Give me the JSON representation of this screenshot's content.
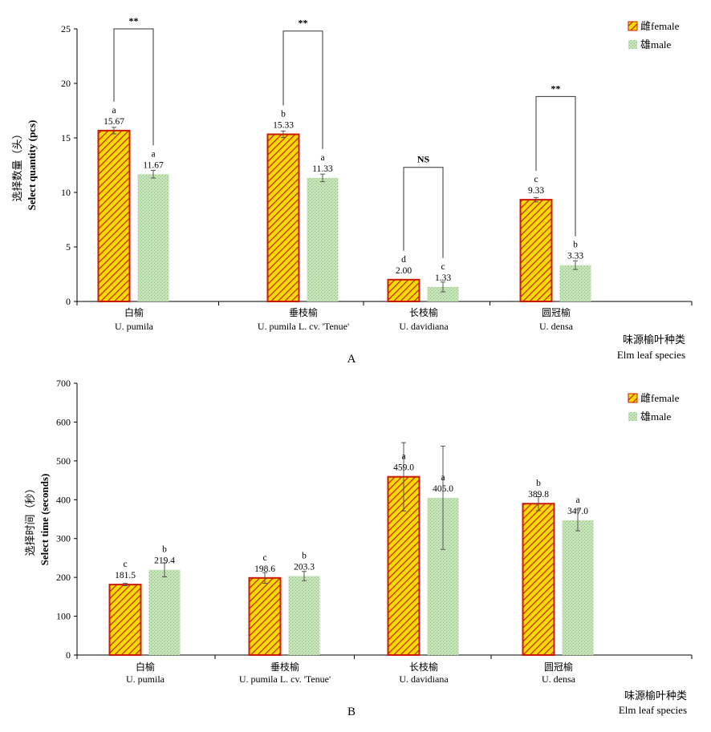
{
  "colors": {
    "female_fill": "#f4dc00",
    "female_hatch": "#cc1a00",
    "female_border": "#cc1a00",
    "male_fill": "#c6e2b8",
    "male_dot": "#8fbd80",
    "axis": "#000000",
    "error_bar": "#555555"
  },
  "chart_data": [
    {
      "type": "bar",
      "panel_label": "A",
      "ylabel_cn": "选择数量（头）",
      "ylabel_en": "Select quantity (pcs)",
      "xlabel_cn": "味源榆叶种类",
      "xlabel_en": "Elm leaf species",
      "ylim": [
        0,
        25
      ],
      "yticks": [
        "0",
        "5",
        "10",
        "15",
        "20",
        "25"
      ],
      "categories_cn": [
        "白榆",
        "垂枝榆",
        "长枝榆",
        "圆冠榆"
      ],
      "categories_en": [
        "U. pumila",
        "U. pumila L. cv. 'Tenue'",
        "U. davidiana",
        "U. densa"
      ],
      "legend": [
        "雌female",
        "雄male"
      ],
      "legend_position": "top-right",
      "series": [
        {
          "name": "雌female",
          "values": [
            15.67,
            15.33,
            2.0,
            9.33
          ],
          "value_labels": [
            "15.67",
            "15.33",
            "2.00",
            "9.33"
          ],
          "errors": [
            0.3,
            0.3,
            0.0,
            0.2
          ],
          "letters": [
            "a",
            "b",
            "d",
            "c"
          ]
        },
        {
          "name": "雄male",
          "values": [
            11.67,
            11.33,
            1.33,
            3.33
          ],
          "value_labels": [
            "11.67",
            "11.33",
            "1.33",
            "3.33"
          ],
          "errors": [
            0.35,
            0.35,
            0.45,
            0.4
          ],
          "letters": [
            "a",
            "a",
            "c",
            "b"
          ]
        }
      ],
      "significance": [
        {
          "category": 0,
          "label": "**",
          "y": 25
        },
        {
          "category": 1,
          "label": "**",
          "y": 24.8
        },
        {
          "category": 2,
          "label": "NS",
          "y": 12.3
        },
        {
          "category": 3,
          "label": "**",
          "y": 18.8
        }
      ]
    },
    {
      "type": "bar",
      "panel_label": "B",
      "ylabel_cn": "选择时间（秒）",
      "ylabel_en": "Select time (seconds)",
      "xlabel_cn": "味源榆叶种类",
      "xlabel_en": "Elm leaf species",
      "ylim": [
        0,
        700
      ],
      "yticks": [
        "0",
        "100",
        "200",
        "300",
        "400",
        "500",
        "600",
        "700"
      ],
      "categories_cn": [
        "白榆",
        "垂枝榆",
        "长枝榆",
        "圆冠榆"
      ],
      "categories_en": [
        "U. pumila",
        "U. pumila L. cv. 'Tenue'",
        "U. davidiana",
        "U. densa"
      ],
      "legend": [
        "雌female",
        "雄male"
      ],
      "legend_position": "top-right",
      "series": [
        {
          "name": "雌female",
          "values": [
            181.5,
            198.6,
            459.0,
            389.8
          ],
          "value_labels": [
            "181.5",
            "198.6",
            "459.0",
            "389.8"
          ],
          "errors": [
            3,
            14,
            88,
            18
          ],
          "letters": [
            "c",
            "c",
            "a",
            "b"
          ]
        },
        {
          "name": "雄male",
          "values": [
            219.4,
            203.3,
            405.0,
            347.0
          ],
          "value_labels": [
            "219.4",
            "203.3",
            "405.0",
            "347.0"
          ],
          "errors": [
            18,
            12,
            133,
            27
          ],
          "letters": [
            "b",
            "b",
            "a",
            "a"
          ]
        }
      ],
      "significance": []
    }
  ]
}
